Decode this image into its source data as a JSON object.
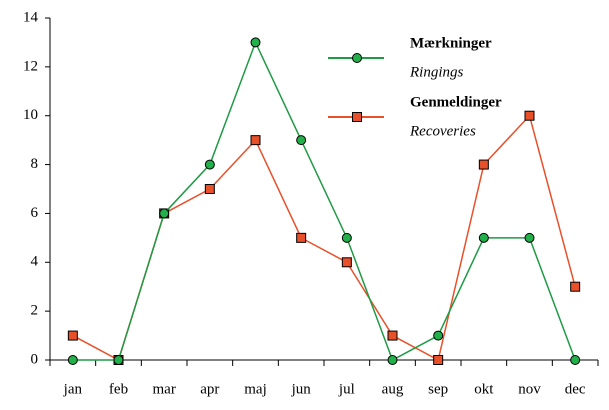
{
  "chart_data": {
    "type": "line",
    "categories": [
      "jan",
      "feb",
      "mar",
      "apr",
      "maj",
      "jun",
      "jul",
      "aug",
      "sep",
      "okt",
      "nov",
      "dec"
    ],
    "series": [
      {
        "name": "Mærkninger",
        "subtitle": "Ringings",
        "color": "#1f9a45",
        "marker": "circle",
        "marker_color": "#22b04b",
        "values": [
          0,
          0,
          6,
          8,
          13,
          9,
          5,
          0,
          1,
          5,
          5,
          0
        ]
      },
      {
        "name": "Genmeldinger",
        "subtitle": "Recoveries",
        "color": "#e8502a",
        "marker": "square",
        "marker_color": "#e8502a",
        "values": [
          1,
          0,
          6,
          7,
          9,
          5,
          4,
          1,
          0,
          8,
          10,
          3
        ]
      }
    ],
    "ylim": [
      0,
      14
    ],
    "yticks": [
      0,
      2,
      4,
      6,
      8,
      10,
      12,
      14
    ],
    "grid": false
  }
}
